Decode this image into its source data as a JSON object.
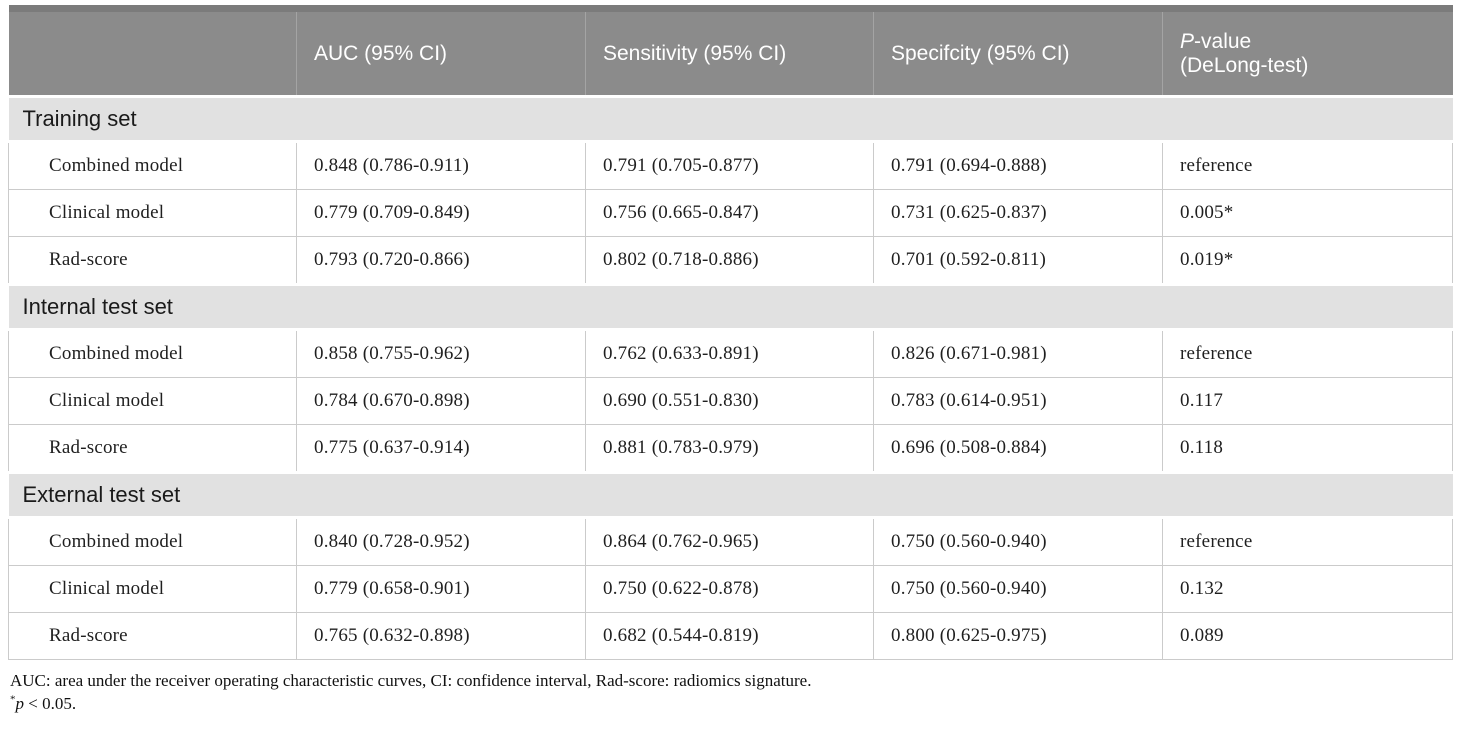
{
  "table": {
    "headers": {
      "col0": "",
      "auc": "AUC (95% CI)",
      "sensitivity": "Sensitivity (95% CI)",
      "specificity": "Specifcity (95% CI)",
      "p_value": {
        "italic": "P",
        "rest": "-value",
        "line2": "(DeLong-test)"
      }
    },
    "sections": [
      {
        "label": "Training set",
        "rows": [
          {
            "model": "Combined model",
            "auc": "0.848 (0.786-0.911)",
            "sensitivity": "0.791 (0.705-0.877)",
            "specificity": "0.791 (0.694-0.888)",
            "p_value": "reference"
          },
          {
            "model": "Clinical model",
            "auc": "0.779 (0.709-0.849)",
            "sensitivity": "0.756 (0.665-0.847)",
            "specificity": "0.731 (0.625-0.837)",
            "p_value": "0.005*"
          },
          {
            "model": "Rad-score",
            "auc": "0.793 (0.720-0.866)",
            "sensitivity": "0.802 (0.718-0.886)",
            "specificity": "0.701 (0.592-0.811)",
            "p_value": "0.019*"
          }
        ]
      },
      {
        "label": "Internal test set",
        "rows": [
          {
            "model": "Combined model",
            "auc": "0.858 (0.755-0.962)",
            "sensitivity": "0.762 (0.633-0.891)",
            "specificity": "0.826 (0.671-0.981)",
            "p_value": "reference"
          },
          {
            "model": "Clinical model",
            "auc": "0.784 (0.670-0.898)",
            "sensitivity": "0.690 (0.551-0.830)",
            "specificity": "0.783 (0.614-0.951)",
            "p_value": "0.117"
          },
          {
            "model": "Rad-score",
            "auc": "0.775 (0.637-0.914)",
            "sensitivity": "0.881 (0.783-0.979)",
            "specificity": "0.696 (0.508-0.884)",
            "p_value": "0.118"
          }
        ]
      },
      {
        "label": "External test set",
        "rows": [
          {
            "model": "Combined model",
            "auc": "0.840 (0.728-0.952)",
            "sensitivity": "0.864 (0.762-0.965)",
            "specificity": "0.750 (0.560-0.940)",
            "p_value": "reference"
          },
          {
            "model": "Clinical model",
            "auc": "0.779 (0.658-0.901)",
            "sensitivity": "0.750 (0.622-0.878)",
            "specificity": "0.750 (0.560-0.940)",
            "p_value": "0.132"
          },
          {
            "model": "Rad-score",
            "auc": "0.765 (0.632-0.898)",
            "sensitivity": "0.682 (0.544-0.819)",
            "specificity": "0.800 (0.625-0.975)",
            "p_value": "0.089"
          }
        ]
      }
    ],
    "footnotes": {
      "abbreviations": "AUC: area under the receiver operating characteristic curves, CI: confidence interval, Rad-score: radiomics signature.",
      "significance": {
        "star": "*",
        "p": "p",
        "rest": " < 0.05."
      }
    }
  },
  "colors": {
    "header_bg": "#8b8b8b",
    "header_top_strip": "#7b7b7b",
    "header_text": "#ffffff",
    "section_bg": "#e1e1e1",
    "row_border": "#cbcbcb",
    "body_text": "#1f1f1f"
  }
}
